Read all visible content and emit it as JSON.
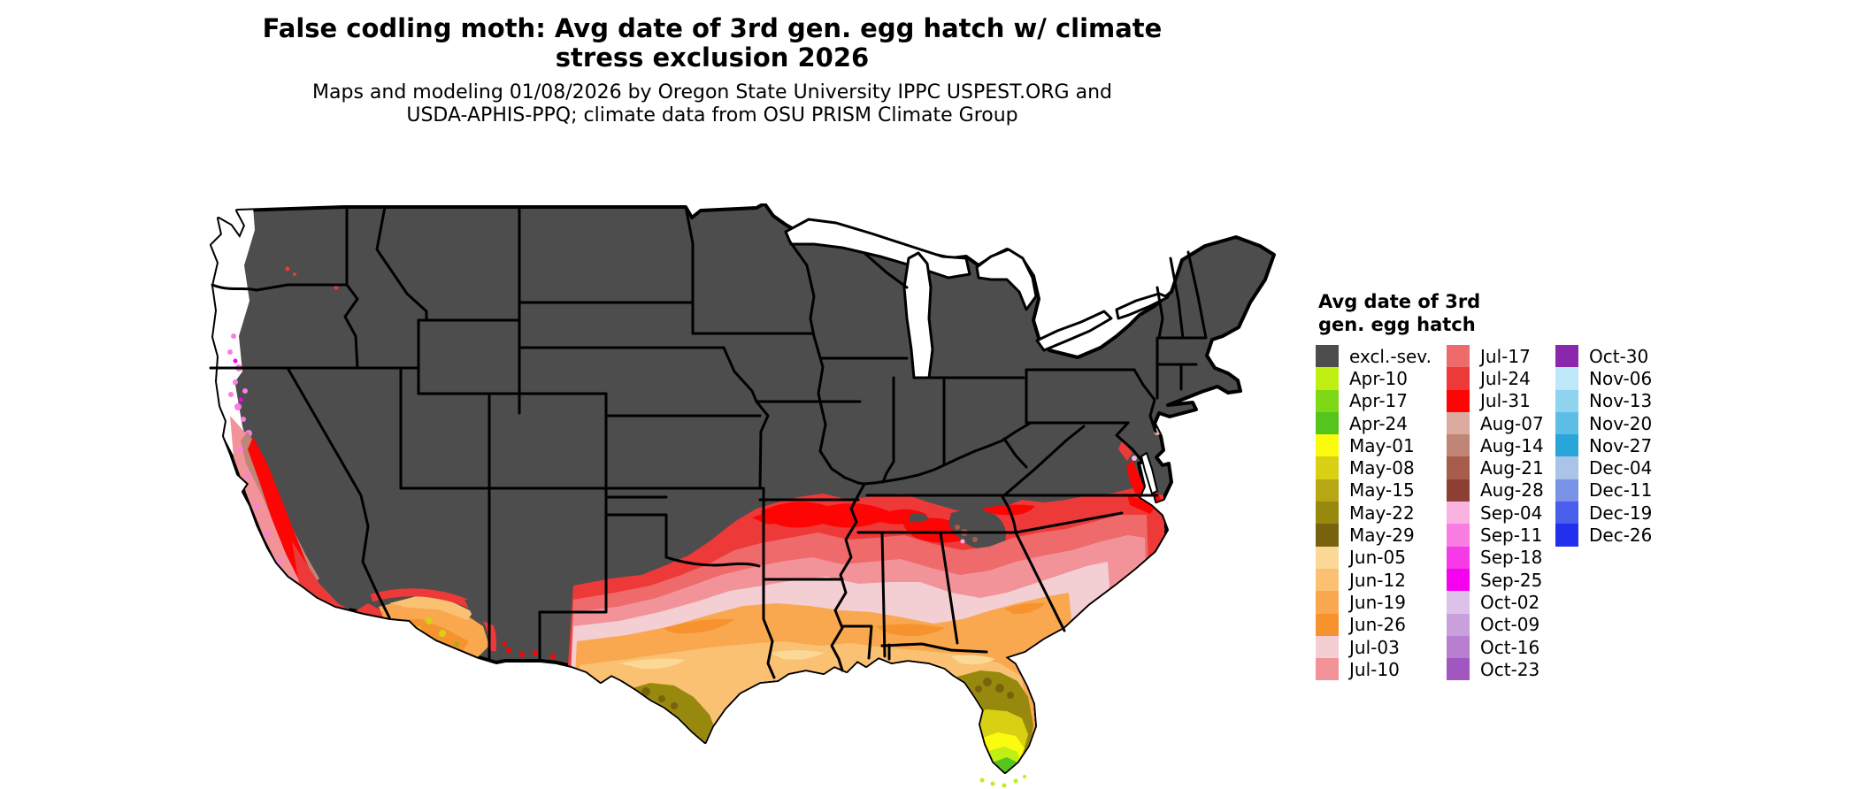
{
  "title": {
    "line1": "False codling moth: Avg date of 3rd gen. egg hatch w/ climate",
    "line2": "stress exclusion 2026"
  },
  "subtitle": {
    "line1": "Maps and modeling 01/08/2026 by Oregon State University IPPC USPEST.ORG and",
    "line2": "USDA-APHIS-PPQ; climate data from OSU PRISM Climate Group"
  },
  "legend": {
    "title_line1": "Avg date of 3rd",
    "title_line2": "gen. egg hatch",
    "columns": [
      [
        {
          "label": "excl.-sev.",
          "color": "excl"
        },
        {
          "label": "Apr-10",
          "color": "apr10"
        },
        {
          "label": "Apr-17",
          "color": "apr17"
        },
        {
          "label": "Apr-24",
          "color": "apr24"
        },
        {
          "label": "May-01",
          "color": "may01"
        },
        {
          "label": "May-08",
          "color": "may08"
        },
        {
          "label": "May-15",
          "color": "may15"
        },
        {
          "label": "May-22",
          "color": "may22"
        },
        {
          "label": "May-29",
          "color": "may29"
        },
        {
          "label": "Jun-05",
          "color": "jun05"
        },
        {
          "label": "Jun-12",
          "color": "jun12"
        },
        {
          "label": "Jun-19",
          "color": "jun19"
        },
        {
          "label": "Jun-26",
          "color": "jun26"
        },
        {
          "label": "Jul-03",
          "color": "jul03"
        },
        {
          "label": "Jul-10",
          "color": "jul10"
        }
      ],
      [
        {
          "label": "Jul-17",
          "color": "jul17"
        },
        {
          "label": "Jul-24",
          "color": "jul24"
        },
        {
          "label": "Jul-31",
          "color": "jul31"
        },
        {
          "label": "Aug-07",
          "color": "aug07"
        },
        {
          "label": "Aug-14",
          "color": "aug14"
        },
        {
          "label": "Aug-21",
          "color": "aug21"
        },
        {
          "label": "Aug-28",
          "color": "aug28"
        },
        {
          "label": "Sep-04",
          "color": "sep04"
        },
        {
          "label": "Sep-11",
          "color": "sep11"
        },
        {
          "label": "Sep-18",
          "color": "sep18"
        },
        {
          "label": "Sep-25",
          "color": "sep25"
        },
        {
          "label": "Oct-02",
          "color": "oct02"
        },
        {
          "label": "Oct-09",
          "color": "oct09"
        },
        {
          "label": "Oct-16",
          "color": "oct16"
        },
        {
          "label": "Oct-23",
          "color": "oct23"
        }
      ],
      [
        {
          "label": "Oct-30",
          "color": "oct30"
        },
        {
          "label": "Nov-06",
          "color": "nov06"
        },
        {
          "label": "Nov-13",
          "color": "nov13"
        },
        {
          "label": "Nov-20",
          "color": "nov20"
        },
        {
          "label": "Nov-27",
          "color": "nov27"
        },
        {
          "label": "Dec-04",
          "color": "dec04"
        },
        {
          "label": "Dec-11",
          "color": "dec11"
        },
        {
          "label": "Dec-19",
          "color": "dec19"
        },
        {
          "label": "Dec-26",
          "color": "dec26"
        }
      ]
    ]
  },
  "palette": {
    "excl": "#4d4d4d",
    "apr10": "#c0ef13",
    "apr17": "#7fd816",
    "apr24": "#53c51d",
    "may01": "#fbfb0f",
    "may08": "#d9d014",
    "may15": "#b7a714",
    "may22": "#97890e",
    "may29": "#77630d",
    "jun05": "#fbd896",
    "jun12": "#fac172",
    "jun19": "#f9a850",
    "jun26": "#f6932e",
    "jul03": "#f3ced2",
    "jul10": "#f29399",
    "jul17": "#ef6a6a",
    "jul24": "#ee3939",
    "jul31": "#fd0505",
    "aug07": "#dcaba0",
    "aug14": "#c08577",
    "aug21": "#a85c4b",
    "aug28": "#8f4034",
    "sep04": "#fab3e1",
    "sep11": "#f97de2",
    "sep18": "#f73ae7",
    "sep25": "#f503f0",
    "oct02": "#dcc2e9",
    "oct09": "#c9a0dc",
    "oct16": "#b87fd0",
    "oct23": "#a257c0",
    "oct30": "#8b27ad",
    "nov06": "#bee8fa",
    "nov13": "#8fd3ef",
    "nov20": "#5cbde5",
    "nov27": "#2aa5d9",
    "dec04": "#a9c4e6",
    "dec11": "#7b92e9",
    "dec19": "#4a5eee",
    "dec26": "#2230ee",
    "water": "#ffffff",
    "border": "#000000"
  },
  "map": {
    "region": "Contiguous United States",
    "zones": [
      {
        "area": "Northern and interior US",
        "value": "excl.-sev."
      },
      {
        "area": "Pacific Northwest coast",
        "value": "no data (white) with Sep–Oct specks"
      },
      {
        "area": "California Central Valley",
        "value": "Jul-24 – Jul-31"
      },
      {
        "area": "California coast",
        "value": "Jul-03 – Sep-25 mix"
      },
      {
        "area": "Sierra foothills ring",
        "value": "Aug-07 – Aug-28"
      },
      {
        "area": "Southwest deserts (AZ / SE CA)",
        "value": "Jun-05 – Jun-26 with May spots"
      },
      {
        "area": "Tennessee / mid-South band",
        "value": "Jul-24 – Jul-31"
      },
      {
        "area": "Deep South band",
        "value": "Jul-03 – Jul-17"
      },
      {
        "area": "Gulf Coast band",
        "value": "Jun-12 – Jun-26"
      },
      {
        "area": "South Texas",
        "value": "May-08 – May-29"
      },
      {
        "area": "Central Florida",
        "value": "May-01 – May-29"
      },
      {
        "area": "South Florida tip",
        "value": "Apr-10 – Apr-24"
      },
      {
        "area": "Chesapeake Bay shores",
        "value": "Jul-24 – Jul-31"
      }
    ]
  }
}
